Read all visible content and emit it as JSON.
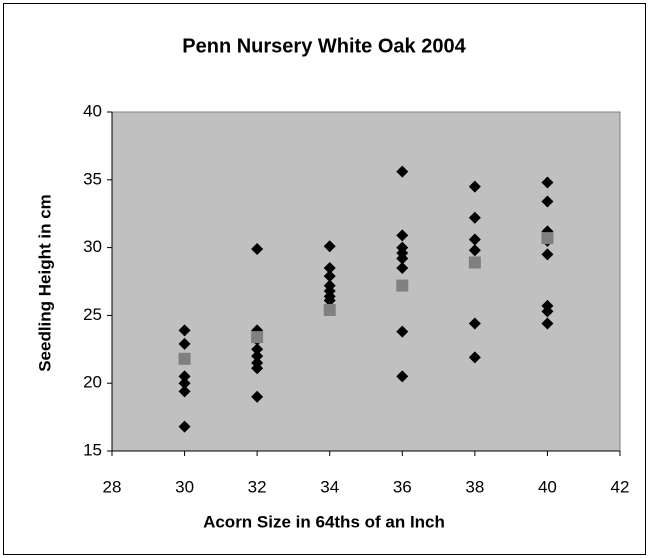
{
  "chart_data": {
    "type": "scatter",
    "title": "Penn Nursery White Oak 2004",
    "xlabel": "Acorn Size in 64ths of an Inch",
    "ylabel": "Seedling Height in cm",
    "xlim": [
      28,
      42
    ],
    "xticks": [
      28,
      30,
      32,
      34,
      36,
      38,
      40,
      42
    ],
    "ylim": [
      15,
      40
    ],
    "yticks": [
      15,
      20,
      25,
      30,
      35,
      40
    ],
    "series": [
      {
        "marker": "diamond",
        "color": "#000000",
        "x": [
          30,
          30,
          30,
          30,
          30,
          30,
          32,
          32,
          32,
          32,
          32,
          32,
          32,
          32,
          34,
          34,
          34,
          34,
          34,
          34,
          34,
          36,
          36,
          36,
          36,
          36,
          36,
          36,
          36,
          38,
          38,
          38,
          38,
          38,
          38,
          40,
          40,
          40,
          40,
          40,
          40,
          40,
          40
        ],
        "values": [
          23.9,
          22.9,
          20.5,
          20.0,
          19.4,
          16.8,
          29.9,
          23.9,
          23.2,
          22.5,
          22.0,
          21.5,
          21.1,
          19.0,
          30.1,
          28.5,
          27.9,
          27.2,
          26.8,
          26.4,
          26.1,
          35.6,
          30.9,
          30.0,
          29.6,
          29.2,
          28.5,
          23.8,
          20.5,
          34.5,
          32.2,
          30.6,
          29.8,
          24.4,
          21.9,
          34.8,
          33.4,
          31.2,
          30.5,
          29.5,
          25.7,
          25.3,
          24.4
        ]
      },
      {
        "marker": "square",
        "color": "#808080",
        "x": [
          30,
          32,
          34,
          36,
          38,
          40
        ],
        "values": [
          21.8,
          23.4,
          25.4,
          27.2,
          28.9,
          30.7
        ]
      }
    ]
  }
}
